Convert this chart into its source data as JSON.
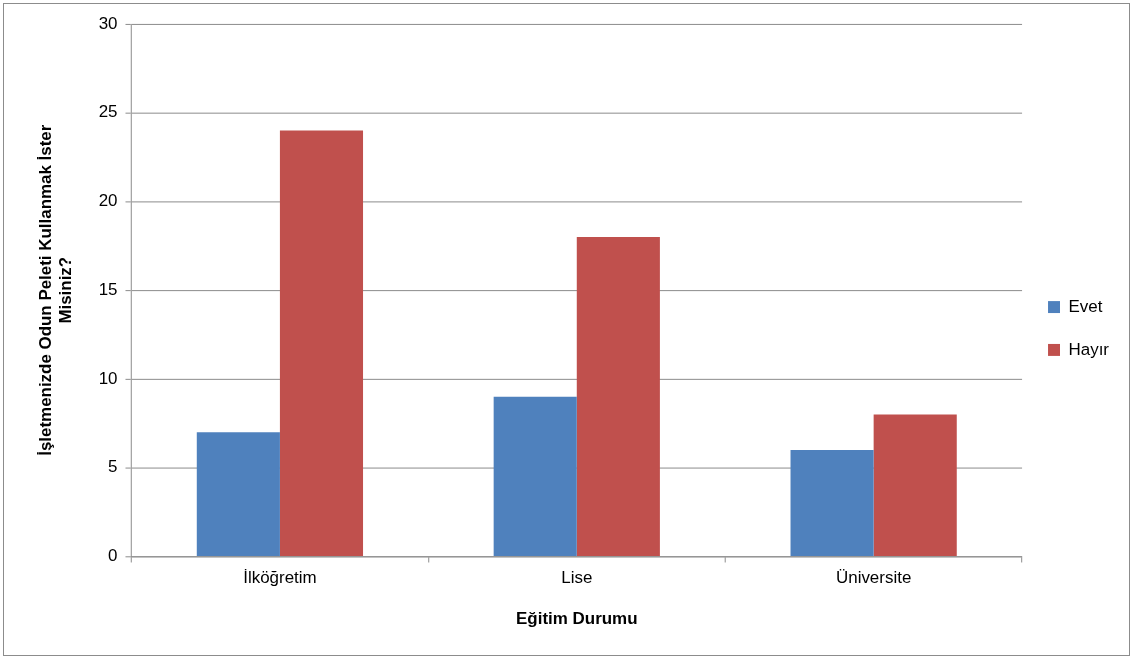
{
  "chart_data": {
    "type": "bar",
    "xlabel": "Eğitim Durumu",
    "ylabel": "İşletmenizde Odun Peleti Kullanmak İster Misiniz?",
    "categories": [
      "İlköğretim",
      "Lise",
      "Üniversite"
    ],
    "series": [
      {
        "name": "Evet",
        "color": "#4f81bd",
        "values": [
          7,
          9,
          6
        ]
      },
      {
        "name": "Hayır",
        "color": "#c0504d",
        "values": [
          24,
          18,
          8
        ]
      }
    ],
    "ylim": [
      0,
      30
    ],
    "yticks": [
      0,
      5,
      10,
      15,
      20,
      25,
      30
    ],
    "grid": "y",
    "legend": "right"
  }
}
